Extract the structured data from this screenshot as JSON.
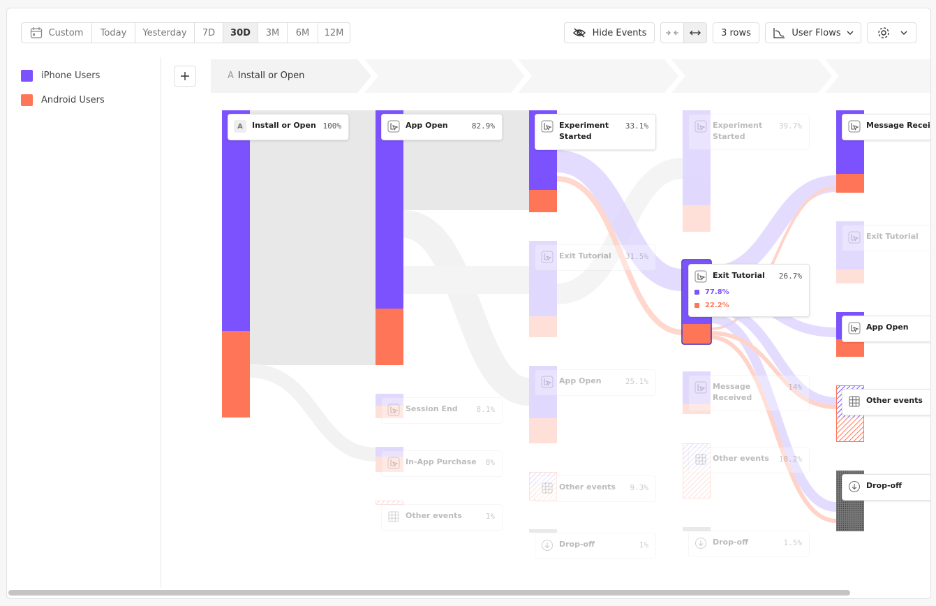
{
  "toolbar": {
    "date_ranges": [
      "Custom",
      "Today",
      "Yesterday",
      "7D",
      "30D",
      "3M",
      "6M",
      "12M"
    ],
    "hide_events": "Hide Events",
    "rows": "3 rows",
    "view": "User Flows"
  },
  "legend": [
    {
      "name": "iPhone Users",
      "color": "#7b52fe"
    },
    {
      "name": "Android Users",
      "color": "#ff7557"
    }
  ],
  "steps": [
    {
      "letter": "A",
      "label": "Install or Open"
    }
  ],
  "columns": [
    [
      {
        "label": "Install or Open",
        "percent": "100%",
        "letter": "A"
      }
    ],
    [
      {
        "label": "App Open",
        "percent": "82.9%",
        "icon": "event"
      },
      {
        "label": "Session End",
        "percent": "8.1%",
        "icon": "event",
        "faded": true
      },
      {
        "label": "In-App Purchase",
        "percent": "8%",
        "icon": "event",
        "faded": true
      },
      {
        "label": "Other events",
        "percent": "1%",
        "icon": "grid",
        "faded": true
      }
    ],
    [
      {
        "label": "Experiment Started",
        "percent": "33.1%",
        "icon": "event"
      },
      {
        "label": "Exit Tutorial",
        "percent": "31.5%",
        "icon": "event",
        "faded": true
      },
      {
        "label": "App Open",
        "percent": "25.1%",
        "icon": "event",
        "faded": true
      },
      {
        "label": "Other events",
        "percent": "9.3%",
        "icon": "grid",
        "faded": true
      },
      {
        "label": "Drop-off",
        "percent": "1%",
        "icon": "dropoff",
        "faded": true
      }
    ],
    [
      {
        "label": "Experiment Started",
        "percent": "39.7%",
        "icon": "event",
        "faded": true
      },
      {
        "label": "Exit Tutorial",
        "percent": "26.7%",
        "icon": "event",
        "breakdown": [
          "77.8%",
          "22.2%"
        ]
      },
      {
        "label": "Message Received",
        "percent": "14%",
        "icon": "event",
        "faded": true
      },
      {
        "label": "Other events",
        "percent": "18.2%",
        "icon": "grid",
        "faded": true
      },
      {
        "label": "Drop-off",
        "percent": "1.5%",
        "icon": "dropoff",
        "faded": true
      }
    ],
    [
      {
        "label": "Message Received",
        "icon": "event"
      },
      {
        "label": "Exit Tutorial",
        "icon": "event",
        "faded": true
      },
      {
        "label": "App Open",
        "icon": "event"
      },
      {
        "label": "Other events",
        "icon": "grid"
      },
      {
        "label": "Drop-off",
        "icon": "dropoff"
      }
    ]
  ]
}
